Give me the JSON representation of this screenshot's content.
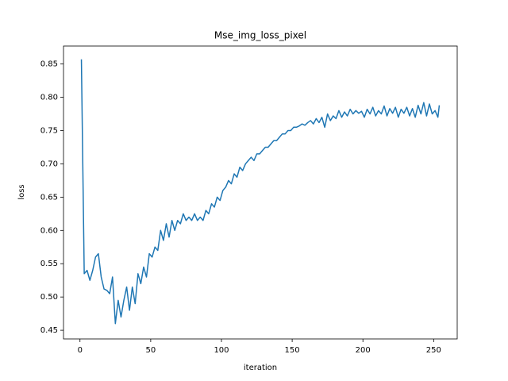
{
  "chart_data": {
    "type": "line",
    "title": "Mse_img_loss_pixel",
    "x_label": "iteration",
    "y_label": "loss",
    "color": "#1f77b4",
    "x": [
      1,
      3,
      5,
      7,
      9,
      11,
      13,
      15,
      17,
      19,
      21,
      23,
      25,
      27,
      29,
      31,
      33,
      35,
      37,
      39,
      41,
      43,
      45,
      47,
      49,
      51,
      53,
      55,
      57,
      59,
      61,
      63,
      65,
      67,
      69,
      71,
      73,
      75,
      77,
      79,
      81,
      83,
      85,
      87,
      89,
      91,
      93,
      95,
      97,
      99,
      101,
      103,
      105,
      107,
      109,
      111,
      113,
      115,
      117,
      119,
      121,
      123,
      125,
      127,
      129,
      131,
      133,
      135,
      137,
      139,
      141,
      143,
      145,
      147,
      149,
      151,
      153,
      155,
      157,
      159,
      161,
      163,
      165,
      167,
      169,
      171,
      173,
      175,
      177,
      179,
      181,
      183,
      185,
      187,
      189,
      191,
      193,
      195,
      197,
      199,
      201,
      203,
      205,
      207,
      209,
      211,
      213,
      215,
      217,
      219,
      221,
      223,
      225,
      227,
      229,
      231,
      233,
      235,
      237,
      239,
      241,
      243,
      245,
      247,
      249,
      251,
      253,
      254
    ],
    "values": [
      0.857,
      0.535,
      0.54,
      0.525,
      0.54,
      0.56,
      0.565,
      0.53,
      0.512,
      0.51,
      0.505,
      0.53,
      0.46,
      0.495,
      0.47,
      0.495,
      0.515,
      0.48,
      0.515,
      0.49,
      0.535,
      0.52,
      0.545,
      0.53,
      0.565,
      0.56,
      0.575,
      0.57,
      0.6,
      0.585,
      0.61,
      0.59,
      0.615,
      0.6,
      0.615,
      0.61,
      0.625,
      0.615,
      0.62,
      0.615,
      0.625,
      0.615,
      0.62,
      0.615,
      0.63,
      0.625,
      0.64,
      0.635,
      0.65,
      0.645,
      0.66,
      0.665,
      0.675,
      0.67,
      0.685,
      0.68,
      0.695,
      0.69,
      0.7,
      0.705,
      0.71,
      0.705,
      0.715,
      0.715,
      0.72,
      0.725,
      0.725,
      0.73,
      0.735,
      0.735,
      0.74,
      0.745,
      0.745,
      0.75,
      0.75,
      0.755,
      0.755,
      0.757,
      0.76,
      0.758,
      0.762,
      0.765,
      0.76,
      0.768,
      0.762,
      0.77,
      0.755,
      0.775,
      0.765,
      0.772,
      0.768,
      0.78,
      0.77,
      0.778,
      0.772,
      0.782,
      0.775,
      0.78,
      0.776,
      0.779,
      0.77,
      0.782,
      0.775,
      0.785,
      0.772,
      0.78,
      0.775,
      0.787,
      0.772,
      0.783,
      0.776,
      0.785,
      0.77,
      0.782,
      0.776,
      0.785,
      0.772,
      0.783,
      0.77,
      0.788,
      0.775,
      0.792,
      0.772,
      0.79,
      0.775,
      0.78,
      0.77,
      0.788
    ],
    "xlim": [
      -11.65,
      266.65
    ],
    "ylim": [
      0.437,
      0.877
    ],
    "xticks": [
      0,
      50,
      100,
      150,
      200,
      250
    ],
    "yticks": [
      0.45,
      {
        "value": 0.5,
        "label": "0.50"
      },
      0.55,
      {
        "value": 0.6,
        "label": "0.60"
      },
      0.65,
      {
        "value": 0.7,
        "label": "0.70"
      },
      0.75,
      {
        "value": 0.8,
        "label": "0.80"
      },
      0.85
    ]
  }
}
